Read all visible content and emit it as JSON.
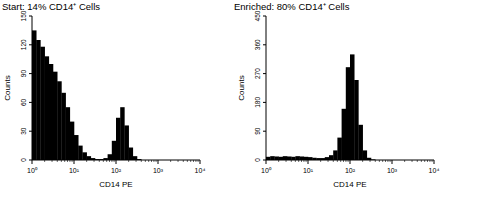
{
  "chart_data": [
    {
      "type": "histogram",
      "title": "Start: 14% CD14⁺ Cells",
      "x_label": "CD14 PE",
      "y_label": "Counts",
      "log": "x",
      "color": "#000000",
      "bins": [
        1,
        1.26,
        1.58,
        2,
        2.51,
        3.16,
        3.98,
        5.01,
        6.31,
        7.94,
        10,
        12.6,
        15.8,
        20,
        25.1,
        31.6,
        39.8,
        50.1,
        63.1,
        79.4,
        100,
        126,
        158,
        200,
        251,
        316,
        398,
        501,
        631,
        794,
        1000,
        1260,
        1580,
        2000,
        2510,
        3160,
        3980,
        5010,
        6310,
        7940,
        10000
      ],
      "values": [
        135,
        125,
        118,
        108,
        100,
        92,
        82,
        70,
        55,
        40,
        26,
        15,
        8,
        4,
        2,
        1,
        1,
        2,
        6,
        20,
        44,
        55,
        36,
        13,
        4,
        1,
        0,
        0,
        0,
        0,
        0,
        0,
        0,
        0,
        0,
        0,
        0,
        0,
        0,
        0
      ],
      "xlim": [
        1,
        10000
      ],
      "xticks": [
        {
          "value": 1,
          "label": "10⁰"
        },
        {
          "value": 10,
          "label": "10¹"
        },
        {
          "value": 100,
          "label": "10²"
        },
        {
          "value": 1000,
          "label": "10³"
        },
        {
          "value": 10000,
          "label": "10⁴"
        }
      ],
      "ylim": [
        0,
        150
      ],
      "yticks": [
        0,
        30,
        60,
        90,
        120,
        150
      ]
    },
    {
      "type": "histogram",
      "title": "Enriched: 80% CD14⁺ Cells",
      "x_label": "CD14 PE",
      "y_label": "Counts",
      "log": "x",
      "color": "#000000",
      "bins": [
        1,
        1.26,
        1.58,
        2,
        2.51,
        3.16,
        3.98,
        5.01,
        6.31,
        7.94,
        10,
        12.6,
        15.8,
        20,
        25.1,
        31.6,
        39.8,
        50.1,
        63.1,
        79.4,
        100,
        126,
        158,
        200,
        251,
        316,
        398,
        501,
        631,
        794,
        1000,
        1260,
        1580,
        2000,
        2510,
        3160,
        3980,
        5010,
        6310,
        7940,
        10000
      ],
      "values": [
        10,
        12,
        11,
        10,
        12,
        11,
        10,
        12,
        11,
        10,
        9,
        7,
        6,
        6,
        9,
        15,
        30,
        70,
        160,
        290,
        330,
        250,
        110,
        30,
        7,
        2,
        0,
        0,
        0,
        0,
        0,
        0,
        0,
        0,
        0,
        0,
        0,
        0,
        0,
        0
      ],
      "xlim": [
        1,
        10000
      ],
      "xticks": [
        {
          "value": 1,
          "label": "10⁰"
        },
        {
          "value": 10,
          "label": "10¹"
        },
        {
          "value": 100,
          "label": "10²"
        },
        {
          "value": 1000,
          "label": "10³"
        },
        {
          "value": 10000,
          "label": "10⁴"
        }
      ],
      "ylim": [
        0,
        450
      ],
      "yticks": [
        0,
        90,
        180,
        270,
        360,
        450
      ]
    }
  ]
}
